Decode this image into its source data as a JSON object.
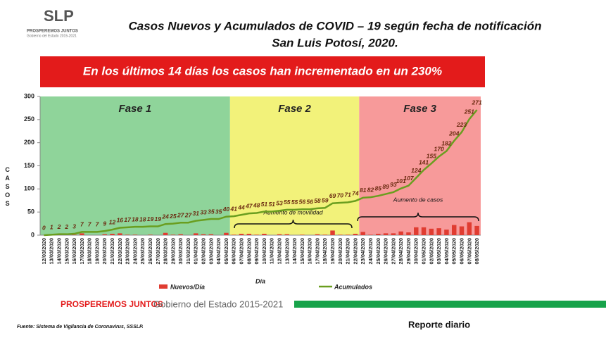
{
  "header": {
    "logo": "SLP",
    "logo_tagline": "PROSPEREMOS JUNTOS",
    "logo_sub": "Gobierno del Estado 2015-2021",
    "title": "Casos Nuevos y Acumulados de COVID – 19 según fecha de notificación",
    "subtitle": "San Luis Potosí, 2020.",
    "banner": "En los últimos 14 días los casos han incrementado en un 230%"
  },
  "chart_data": {
    "type": "bar",
    "x_label": "Día",
    "y_label": "CASOS",
    "categories": [
      "12/03/2020",
      "13/03/2020",
      "14/03/2020",
      "15/03/2020",
      "16/03/2020",
      "17/03/2020",
      "18/03/2020",
      "19/03/2020",
      "20/03/2020",
      "21/03/2020",
      "22/03/2020",
      "23/03/2020",
      "24/03/2020",
      "25/03/2020",
      "26/03/2020",
      "27/03/2020",
      "28/03/2020",
      "29/03/2020",
      "30/03/2020",
      "31/03/2020",
      "01/04/2020",
      "02/04/2020",
      "03/04/2020",
      "04/04/2020",
      "05/04/2020",
      "06/04/2020",
      "07/04/2020",
      "08/04/2020",
      "09/04/2020",
      "10/04/2020",
      "11/04/2020",
      "12/04/2020",
      "13/04/2020",
      "14/04/2020",
      "15/04/2020",
      "16/04/2020",
      "17/04/2020",
      "18/04/2020",
      "19/04/2020",
      "20/04/2020",
      "21/04/2020",
      "22/04/2020",
      "23/04/2020",
      "24/04/2020",
      "25/04/2020",
      "26/04/2020",
      "27/04/2020",
      "28/04/2020",
      "29/04/2020",
      "30/04/2020",
      "01/05/2020",
      "02/05/2020",
      "03/05/2020",
      "04/05/2020",
      "05/05/2020",
      "06/05/2020",
      "07/05/2020",
      "08/05/2020"
    ],
    "series": [
      {
        "name": "Nuevos/Día",
        "type": "bar",
        "color": "#e03c31",
        "values": [
          0,
          1,
          1,
          0,
          1,
          4,
          0,
          0,
          2,
          3,
          4,
          1,
          1,
          0,
          1,
          0,
          5,
          1,
          2,
          0,
          4,
          2,
          2,
          0,
          5,
          1,
          3,
          3,
          1,
          3,
          0,
          2,
          2,
          0,
          1,
          0,
          2,
          1,
          10,
          1,
          1,
          3,
          7,
          1,
          3,
          4,
          4,
          8,
          6,
          17,
          17,
          14,
          15,
          12,
          22,
          19,
          28,
          20
        ]
      },
      {
        "name": "Acumulados",
        "type": "line",
        "color": "#6a9e1f",
        "values": [
          0,
          1,
          2,
          2,
          3,
          7,
          7,
          7,
          9,
          12,
          16,
          17,
          18,
          18,
          19,
          19,
          24,
          25,
          27,
          27,
          31,
          33,
          35,
          35,
          40,
          41,
          44,
          47,
          48,
          51,
          51,
          53,
          55,
          55,
          56,
          56,
          58,
          59,
          69,
          70,
          71,
          74,
          81,
          82,
          85,
          89,
          93,
          101,
          107,
          124,
          141,
          155,
          170,
          182,
          204,
          223,
          251,
          271
        ]
      }
    ],
    "ylim": [
      0,
      300
    ],
    "yticks": [
      0,
      50,
      100,
      150,
      200,
      250,
      300
    ],
    "phases": [
      "Fase 1",
      "Fase 2",
      "Fase 3"
    ],
    "annotations": [
      "Aumento de movilidad",
      "Aumento de casos"
    ]
  },
  "footer": {
    "brand": "PROSPEREMOS JUNTOS",
    "government": "Gobierno del Estado 2015-2021",
    "source": "Fuente: Sistema de Vigilancia de Coronavirus, SSSLP.",
    "report": "Reporte diario"
  }
}
